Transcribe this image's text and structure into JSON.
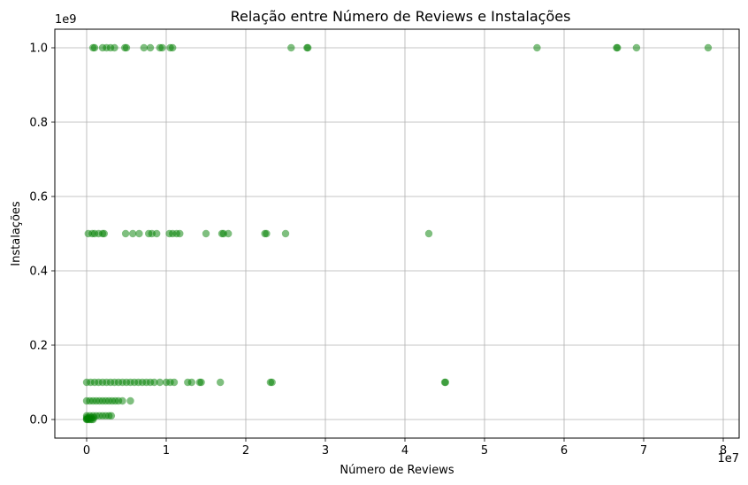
{
  "chart_data": {
    "type": "scatter",
    "title": "Relação entre Número de Reviews e Instalações",
    "xlabel": "Número de Reviews",
    "ylabel": "Instalações",
    "x_offset_label": "1e7",
    "y_offset_label": "1e9",
    "x_scale": 10000000,
    "y_scale": 1000000000,
    "xlim": [
      -0.4,
      8.2
    ],
    "ylim": [
      -0.05,
      1.05
    ],
    "x_ticks": [
      0,
      1,
      2,
      3,
      4,
      5,
      6,
      7,
      8
    ],
    "y_ticks": [
      0.0,
      0.2,
      0.4,
      0.6,
      0.8,
      1.0
    ],
    "grid": true,
    "marker_color": "#008000",
    "marker_alpha": 0.5,
    "points": [
      {
        "x": 0.08,
        "y": 1.0
      },
      {
        "x": 0.1,
        "y": 1.0
      },
      {
        "x": 0.2,
        "y": 1.0
      },
      {
        "x": 0.25,
        "y": 1.0
      },
      {
        "x": 0.3,
        "y": 1.0
      },
      {
        "x": 0.35,
        "y": 1.0
      },
      {
        "x": 0.48,
        "y": 1.0
      },
      {
        "x": 0.5,
        "y": 1.0
      },
      {
        "x": 0.72,
        "y": 1.0
      },
      {
        "x": 0.8,
        "y": 1.0
      },
      {
        "x": 0.92,
        "y": 1.0
      },
      {
        "x": 0.95,
        "y": 1.0
      },
      {
        "x": 1.05,
        "y": 1.0
      },
      {
        "x": 1.08,
        "y": 1.0
      },
      {
        "x": 2.57,
        "y": 1.0
      },
      {
        "x": 2.77,
        "y": 1.0
      },
      {
        "x": 2.78,
        "y": 1.0
      },
      {
        "x": 5.66,
        "y": 1.0
      },
      {
        "x": 6.66,
        "y": 1.0
      },
      {
        "x": 6.67,
        "y": 1.0
      },
      {
        "x": 6.91,
        "y": 1.0
      },
      {
        "x": 7.81,
        "y": 1.0
      },
      {
        "x": 0.02,
        "y": 0.5
      },
      {
        "x": 0.07,
        "y": 0.5
      },
      {
        "x": 0.1,
        "y": 0.5
      },
      {
        "x": 0.15,
        "y": 0.5
      },
      {
        "x": 0.2,
        "y": 0.5
      },
      {
        "x": 0.22,
        "y": 0.5
      },
      {
        "x": 0.49,
        "y": 0.5
      },
      {
        "x": 0.58,
        "y": 0.5
      },
      {
        "x": 0.66,
        "y": 0.5
      },
      {
        "x": 0.78,
        "y": 0.5
      },
      {
        "x": 0.82,
        "y": 0.5
      },
      {
        "x": 0.88,
        "y": 0.5
      },
      {
        "x": 1.04,
        "y": 0.5
      },
      {
        "x": 1.08,
        "y": 0.5
      },
      {
        "x": 1.13,
        "y": 0.5
      },
      {
        "x": 1.17,
        "y": 0.5
      },
      {
        "x": 1.5,
        "y": 0.5
      },
      {
        "x": 1.7,
        "y": 0.5
      },
      {
        "x": 1.72,
        "y": 0.5
      },
      {
        "x": 1.78,
        "y": 0.5
      },
      {
        "x": 2.24,
        "y": 0.5
      },
      {
        "x": 2.26,
        "y": 0.5
      },
      {
        "x": 2.5,
        "y": 0.5
      },
      {
        "x": 4.3,
        "y": 0.5
      },
      {
        "x": 0.0,
        "y": 0.1
      },
      {
        "x": 0.05,
        "y": 0.1
      },
      {
        "x": 0.1,
        "y": 0.1
      },
      {
        "x": 0.15,
        "y": 0.1
      },
      {
        "x": 0.2,
        "y": 0.1
      },
      {
        "x": 0.25,
        "y": 0.1
      },
      {
        "x": 0.3,
        "y": 0.1
      },
      {
        "x": 0.35,
        "y": 0.1
      },
      {
        "x": 0.4,
        "y": 0.1
      },
      {
        "x": 0.45,
        "y": 0.1
      },
      {
        "x": 0.5,
        "y": 0.1
      },
      {
        "x": 0.55,
        "y": 0.1
      },
      {
        "x": 0.6,
        "y": 0.1
      },
      {
        "x": 0.65,
        "y": 0.1
      },
      {
        "x": 0.7,
        "y": 0.1
      },
      {
        "x": 0.75,
        "y": 0.1
      },
      {
        "x": 0.8,
        "y": 0.1
      },
      {
        "x": 0.85,
        "y": 0.1
      },
      {
        "x": 0.92,
        "y": 0.1
      },
      {
        "x": 1.0,
        "y": 0.1
      },
      {
        "x": 1.05,
        "y": 0.1
      },
      {
        "x": 1.1,
        "y": 0.1
      },
      {
        "x": 1.27,
        "y": 0.1
      },
      {
        "x": 1.32,
        "y": 0.1
      },
      {
        "x": 1.42,
        "y": 0.1
      },
      {
        "x": 1.44,
        "y": 0.1
      },
      {
        "x": 1.68,
        "y": 0.1
      },
      {
        "x": 2.31,
        "y": 0.1
      },
      {
        "x": 2.33,
        "y": 0.1
      },
      {
        "x": 4.5,
        "y": 0.1
      },
      {
        "x": 4.51,
        "y": 0.1
      },
      {
        "x": 0.0,
        "y": 0.05
      },
      {
        "x": 0.04,
        "y": 0.05
      },
      {
        "x": 0.08,
        "y": 0.05
      },
      {
        "x": 0.12,
        "y": 0.05
      },
      {
        "x": 0.16,
        "y": 0.05
      },
      {
        "x": 0.2,
        "y": 0.05
      },
      {
        "x": 0.24,
        "y": 0.05
      },
      {
        "x": 0.28,
        "y": 0.05
      },
      {
        "x": 0.32,
        "y": 0.05
      },
      {
        "x": 0.36,
        "y": 0.05
      },
      {
        "x": 0.4,
        "y": 0.05
      },
      {
        "x": 0.45,
        "y": 0.05
      },
      {
        "x": 0.55,
        "y": 0.05
      },
      {
        "x": 0.0,
        "y": 0.01
      },
      {
        "x": 0.04,
        "y": 0.01
      },
      {
        "x": 0.08,
        "y": 0.01
      },
      {
        "x": 0.12,
        "y": 0.01
      },
      {
        "x": 0.16,
        "y": 0.01
      },
      {
        "x": 0.2,
        "y": 0.01
      },
      {
        "x": 0.24,
        "y": 0.01
      },
      {
        "x": 0.28,
        "y": 0.01
      },
      {
        "x": 0.31,
        "y": 0.01
      },
      {
        "x": 0.0,
        "y": 0.005
      },
      {
        "x": 0.03,
        "y": 0.005
      },
      {
        "x": 0.06,
        "y": 0.005
      },
      {
        "x": 0.09,
        "y": 0.005
      },
      {
        "x": 0.0,
        "y": 0.0
      },
      {
        "x": 0.02,
        "y": 0.0
      },
      {
        "x": 0.04,
        "y": 0.0
      },
      {
        "x": 0.06,
        "y": 0.0
      },
      {
        "x": 0.08,
        "y": 0.0
      },
      {
        "x": 0.01,
        "y": 0.002
      },
      {
        "x": 0.0,
        "y": 0.001
      }
    ]
  }
}
